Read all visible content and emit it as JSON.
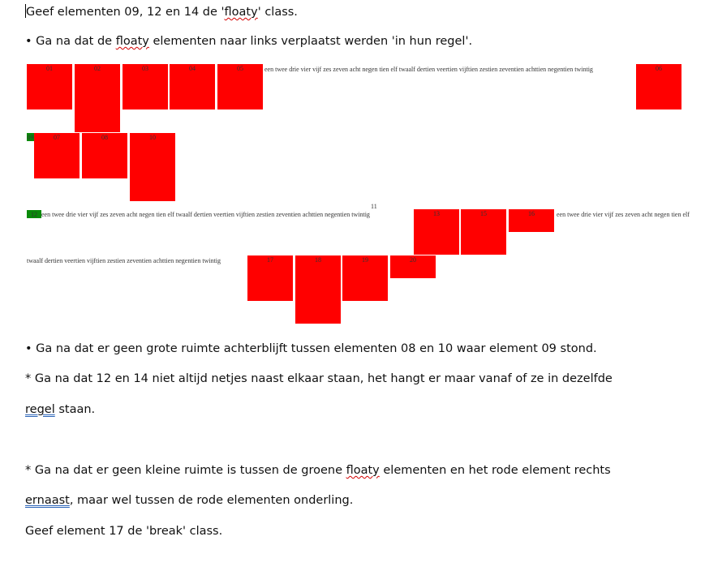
{
  "intro": {
    "a": "Geef elementen 09, 12 en 14 de '",
    "b": "floaty",
    "c": "' class."
  },
  "bullet1": {
    "a": "• Ga na dat de ",
    "b": "floaty",
    "c": " elementen naar links verplaatst werden 'in hun regel'."
  },
  "demo": {
    "filler_text": "een twee drie vier vijf zes zeven acht negen tien elf twaalf dertien veertien vijftien zestien zeventien achttien negentien twintig",
    "filler_row3_end": "een twee drie vier vijf zes zeven acht negen tien elf",
    "filler_row4": "twaalf dertien veertien vijftien zestien zeventien achttien negentien twintig",
    "boxes": {
      "b01": "01",
      "b02": "02",
      "b03": "03",
      "b04": "04",
      "b05": "05",
      "b06": "06",
      "b07": "07",
      "b08": "08",
      "b09": "09",
      "b10": "10",
      "b11": "11",
      "b12": "12",
      "b13": "13",
      "b14": "14",
      "b15": "15",
      "b16": "16",
      "b17": "17",
      "b18": "18",
      "b19": "19",
      "b20": "20"
    },
    "colors": {
      "red": "#ff0000",
      "green": "#0a8a0a"
    }
  },
  "bullet2": "• Ga na dat er geen grote ruimte achterblijft tussen elementen 08 en 10 waar element 09 stond.",
  "note1": {
    "line1": "* Ga na dat 12 en 14 niet altijd netjes naast elkaar staan, het hangt er maar vanaf of ze in dezelfde",
    "line2a": "regel",
    "line2b": " staan."
  },
  "note2": {
    "line1a": "* Ga na dat er geen kleine ruimte is tussen de groene ",
    "line1b": "floaty",
    "line1c": " elementen en het rode element rechts",
    "line2a": "ernaast",
    "line2b": ", maar wel tussen de rode elementen onderling."
  },
  "final": "Geef element 17 de 'break' class."
}
